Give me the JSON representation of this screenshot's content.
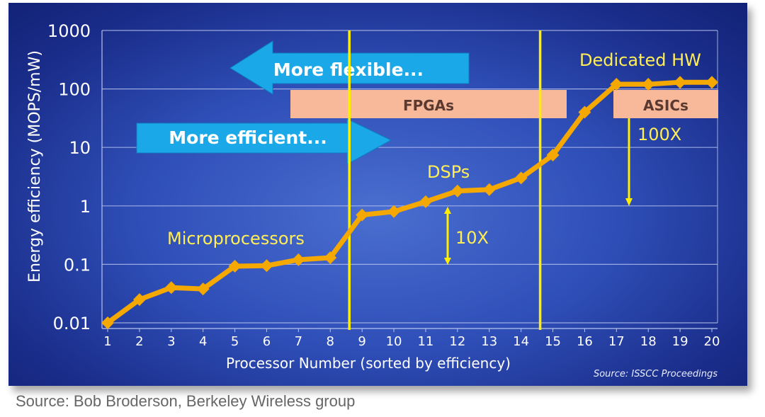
{
  "chart_data": {
    "type": "line",
    "ylabel": "Energy efficiency (MOPS/mW)",
    "xlabel": "Processor Number (sorted by efficiency)",
    "yscale": "log",
    "ylim": [
      0.01,
      1000
    ],
    "xlim": [
      1,
      20
    ],
    "yticks": [
      "1000",
      "100",
      "10",
      "1",
      "0.1",
      "0.01"
    ],
    "x": [
      1,
      2,
      3,
      4,
      5,
      6,
      7,
      8,
      9,
      10,
      11,
      12,
      13,
      14,
      15,
      16,
      17,
      18,
      19,
      20
    ],
    "values": [
      0.01,
      0.025,
      0.04,
      0.038,
      0.093,
      0.095,
      0.12,
      0.13,
      0.7,
      0.8,
      1.18,
      1.8,
      1.9,
      3,
      7.4,
      40,
      120,
      120,
      130,
      130
    ],
    "grid": true,
    "line_color": "#f5a800",
    "dividers_x": [
      8.6,
      14.6
    ],
    "annotations": {
      "more_flexible": "More flexible...",
      "more_efficient": "More efficient...",
      "fpgas": "FPGAs",
      "asics": "ASICs",
      "dedicated_hw": "Dedicated HW",
      "dsps": "DSPs",
      "microprocessors": "Microprocessors",
      "ten_x": "10X",
      "hundred_x": "100X"
    },
    "source": "Source: ISSCC Proceedings"
  },
  "footer": "Source: Bob Broderson, Berkeley Wireless group"
}
